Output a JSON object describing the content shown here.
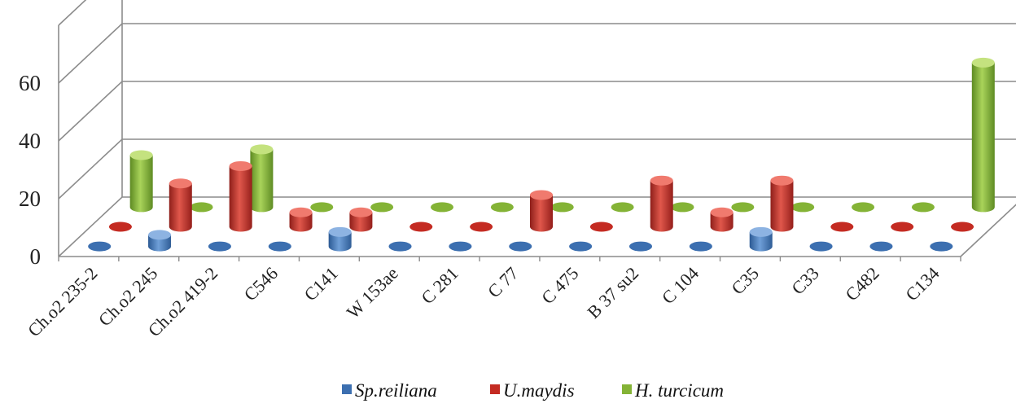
{
  "chart_data": {
    "type": "bar",
    "categories": [
      "Ch.o2 235-2",
      "Ch.o2 245",
      "Ch.o2 419-2",
      "C546",
      "C141",
      "W 153ae",
      "C 281",
      "C 77",
      "C 475",
      "B 37 su2",
      "C 104",
      "C35",
      "C33",
      "C482",
      "C134"
    ],
    "series": [
      {
        "name": "Sp.reiliana",
        "values": [
          0,
          4,
          0,
          0,
          5,
          0,
          0,
          0,
          0,
          0,
          0,
          5,
          0,
          0,
          0
        ]
      },
      {
        "name": "U.maydis",
        "values": [
          0,
          15,
          21,
          5,
          5,
          0,
          0,
          11,
          0,
          16,
          5,
          16,
          0,
          0,
          0
        ]
      },
      {
        "name": "H. turcicum",
        "values": [
          18,
          0,
          20,
          0,
          0,
          0,
          0,
          0,
          0,
          0,
          0,
          0,
          0,
          0,
          50
        ]
      }
    ],
    "ylim": [
      0,
      80
    ],
    "yticks": [
      0,
      20,
      40,
      60
    ],
    "grid": true,
    "legend_position": "bottom",
    "colors": {
      "Sp.reiliana": "#4a7ebb",
      "U.maydis": "#c0392b",
      "H. turcicum": "#8cb83c"
    }
  }
}
